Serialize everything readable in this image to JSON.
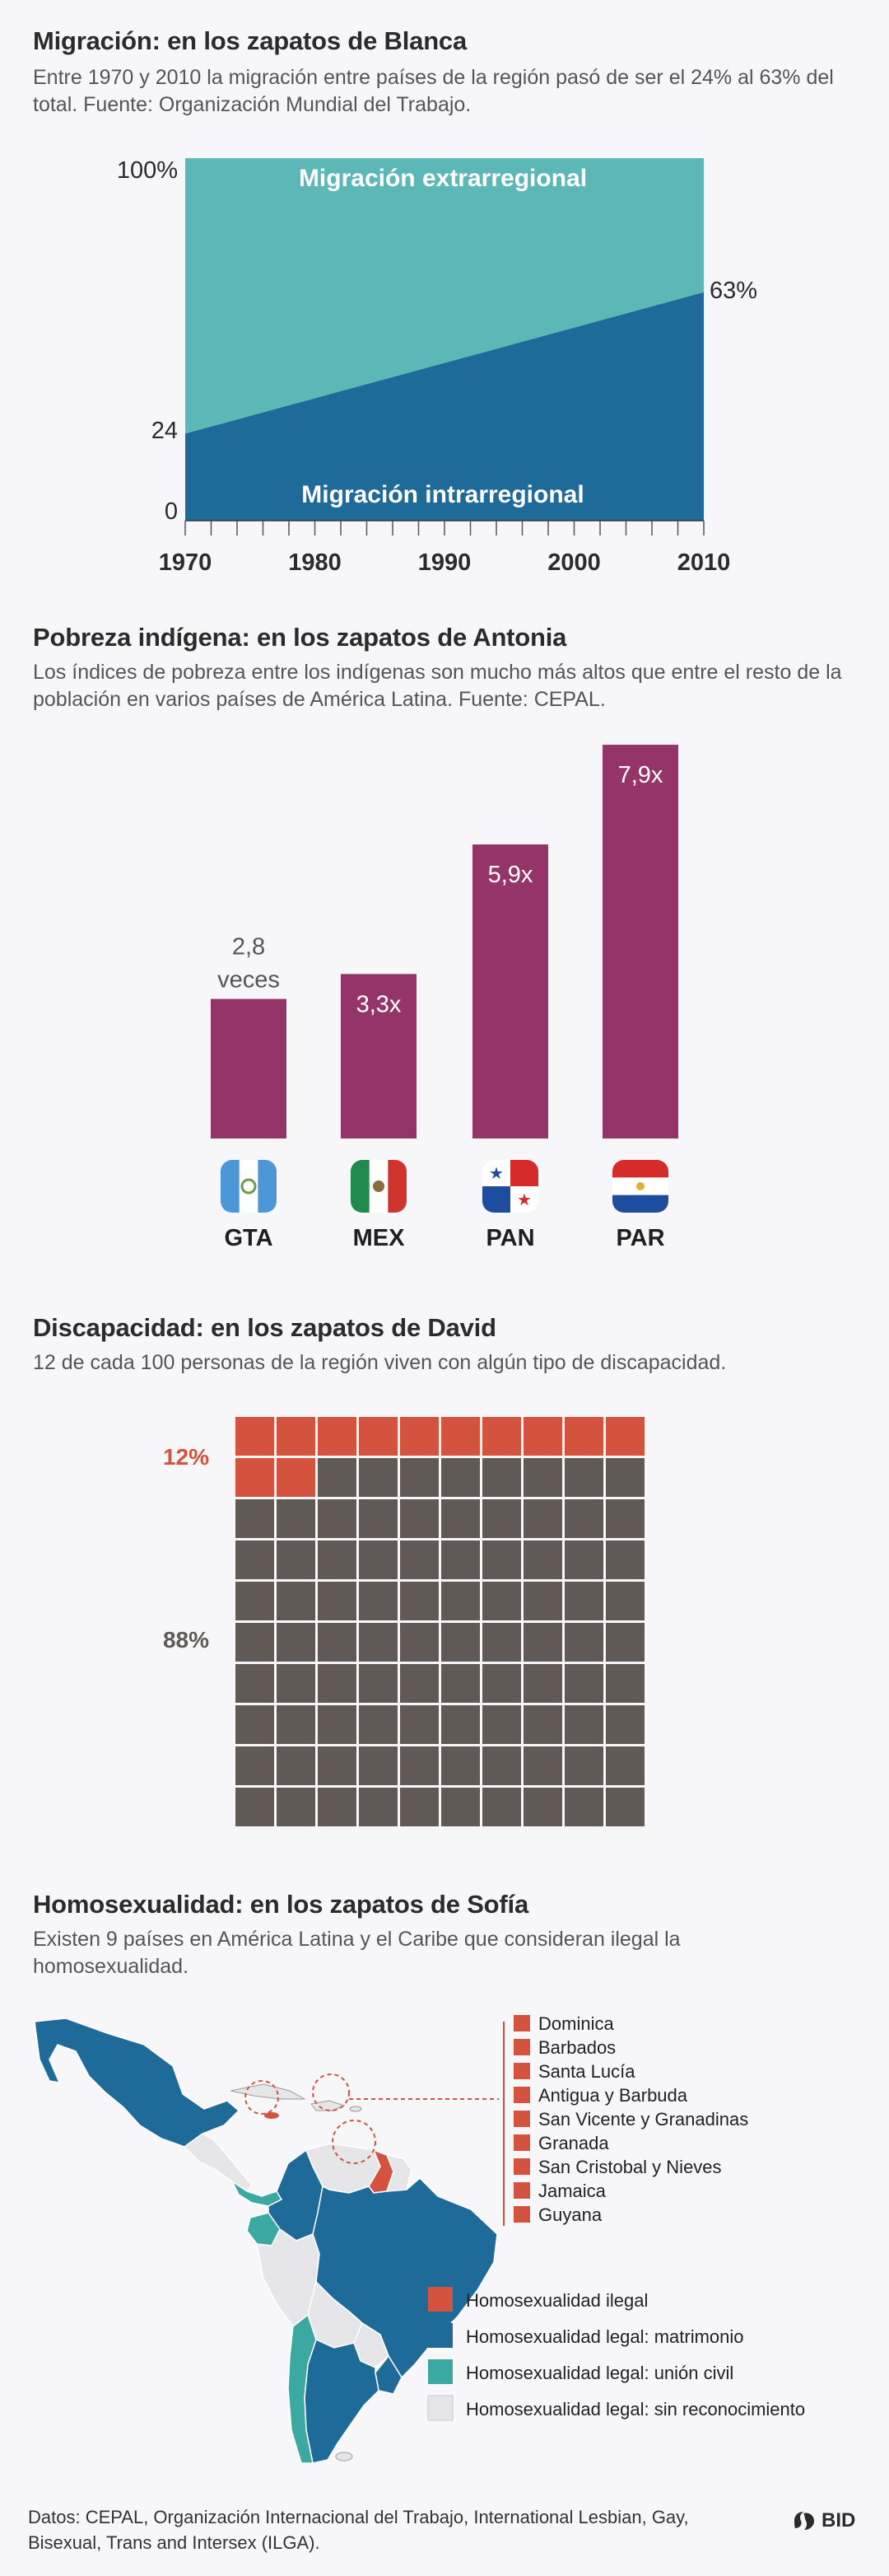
{
  "sections": {
    "migration": {
      "title": "Migración: en los zapatos de Blanca",
      "desc": "Entre 1970 y 2010 la migración entre países de la región pasó de ser el 24% al 63% del total. Fuente: Organización Mundial del Trabajo."
    },
    "poverty": {
      "title": "Pobreza indígena: en los zapatos de Antonia",
      "desc": "Los índices de pobreza entre los indígenas son mucho más altos que entre el resto de la población en varios países de América Latina. Fuente: CEPAL."
    },
    "disability": {
      "title": "Discapacidad: en los zapatos de David",
      "desc": "12 de cada 100 personas de la región viven con algún tipo de discapacidad."
    },
    "homosexuality": {
      "title": "Homosexualidad: en los zapatos de Sofía",
      "desc": "Existen 9 países en América Latina y el Caribe que consideran ilegal la homosexualidad."
    }
  },
  "chart_data": [
    {
      "type": "area",
      "x": [
        1970,
        2010
      ],
      "series": [
        {
          "name": "Migración intrarregional",
          "values": [
            24,
            63
          ],
          "color": "#1e6a99"
        },
        {
          "name": "Migración extrarregional",
          "values": [
            76,
            37
          ],
          "color": "#5cb8b6"
        }
      ],
      "xticks": [
        "1970",
        "1980",
        "1990",
        "2000",
        "2010"
      ],
      "ylim": [
        0,
        100
      ],
      "ylabels": {
        "top": "100%",
        "start": "24",
        "zero": "0",
        "end": "63%"
      },
      "stacked": true
    },
    {
      "type": "bar",
      "categories": [
        "GTA",
        "MEX",
        "PAN",
        "PAR"
      ],
      "values": [
        2.8,
        3.3,
        5.9,
        7.9
      ],
      "labels": [
        "2,8\nveces",
        "3,3x",
        "5,9x",
        "7,9x"
      ],
      "color": "#953469",
      "flags": [
        "guatemala-flag-icon",
        "mexico-flag-icon",
        "panama-flag-icon",
        "paraguay-flag-icon"
      ]
    },
    {
      "type": "waffle",
      "rows": 10,
      "cols": 10,
      "values": [
        12,
        88
      ],
      "labels": [
        "12%",
        "88%"
      ],
      "colors": [
        "#d4533f",
        "#615955"
      ]
    }
  ],
  "map": {
    "islands": [
      "Dominica",
      "Barbados",
      "Santa Lucía",
      "Antigua y Barbuda",
      "San Vicente y Granadinas",
      "Granada",
      "San Cristobal y Nieves",
      "Jamaica",
      "Guyana"
    ],
    "legend": [
      {
        "label": "Homosexualidad ilegal",
        "color": "#d4533f"
      },
      {
        "label": "Homosexualidad legal: matrimonio",
        "color": "#1e6a99"
      },
      {
        "label": "Homosexualidad legal: unión civil",
        "color": "#3ba9a2"
      },
      {
        "label": "Homosexualidad legal: sin reconocimiento",
        "color": "#e6e6e8"
      }
    ]
  },
  "footer": {
    "text": "Datos: CEPAL, Organización Internacional del Trabajo, International Lesbian, Gay, Bisexual, Trans and Intersex (ILGA).",
    "logo": "BID"
  }
}
